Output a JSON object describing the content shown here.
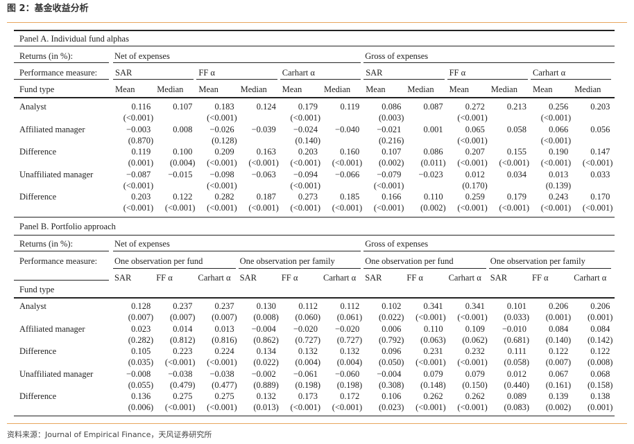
{
  "header": {
    "title": "图 2：基金收益分析"
  },
  "panel_a": {
    "title": "Panel A. Individual fund alphas",
    "returns_label": "Returns (in %):",
    "groups": [
      "Net of expenses",
      "Gross of expenses"
    ],
    "measure_label": "Performance measure:",
    "measures": [
      "SAR",
      "FF α",
      "Carhart α",
      "SAR",
      "FF α",
      "Carhart α"
    ],
    "fund_type_label": "Fund type",
    "stats": [
      "Mean",
      "Median",
      "Mean",
      "Median",
      "Mean",
      "Median",
      "Mean",
      "Median",
      "Mean",
      "Median",
      "Mean",
      "Median"
    ],
    "rows": [
      {
        "label": "Analyst",
        "values": [
          "0.116",
          "0.107",
          "0.183",
          "0.124",
          "0.179",
          "0.119",
          "0.086",
          "0.087",
          "0.272",
          "0.213",
          "0.256",
          "0.203"
        ],
        "pvalues": [
          "(<0.001)",
          null,
          "(<0.001)",
          null,
          "(<0.001)",
          null,
          "(0.003)",
          null,
          "(<0.001)",
          null,
          "(<0.001)",
          null
        ]
      },
      {
        "label": "Affiliated manager",
        "values": [
          "−0.003",
          "0.008",
          "−0.026",
          "−0.039",
          "−0.024",
          "−0.040",
          "−0.021",
          "0.001",
          "0.065",
          "0.058",
          "0.066",
          "0.056"
        ],
        "pvalues": [
          "(0.870)",
          null,
          "(0.128)",
          null,
          "(0.140)",
          null,
          "(0.216)",
          null,
          "(<0.001)",
          null,
          "(<0.001)",
          null
        ]
      },
      {
        "label": "Difference",
        "values": [
          "0.119",
          "0.100",
          "0.209",
          "0.163",
          "0.203",
          "0.160",
          "0.107",
          "0.086",
          "0.207",
          "0.155",
          "0.190",
          "0.147"
        ],
        "pvalues": [
          "(0.001)",
          "(0.004)",
          "(<0.001)",
          "(<0.001)",
          "(<0.001)",
          "(<0.001)",
          "(0.002)",
          "(0.011)",
          "(<0.001)",
          "(<0.001)",
          "(<0.001)",
          "(<0.001)"
        ]
      },
      {
        "label": "Unaffiliated manager",
        "values": [
          "−0.087",
          "−0.015",
          "−0.098",
          "−0.063",
          "−0.094",
          "−0.066",
          "−0.079",
          "−0.023",
          "0.012",
          "0.034",
          "0.013",
          "0.033"
        ],
        "pvalues": [
          "(<0.001)",
          null,
          "(<0.001)",
          null,
          "(<0.001)",
          null,
          "(<0.001)",
          null,
          "(0.170)",
          null,
          "(0.139)",
          null
        ]
      },
      {
        "label": "Difference",
        "values": [
          "0.203",
          "0.122",
          "0.282",
          "0.187",
          "0.273",
          "0.185",
          "0.166",
          "0.110",
          "0.259",
          "0.179",
          "0.243",
          "0.170"
        ],
        "pvalues": [
          "(<0.001)",
          "(<0.001)",
          "(<0.001)",
          "(<0.001)",
          "(<0.001)",
          "(<0.001)",
          "(<0.001)",
          "(0.002)",
          "(<0.001)",
          "(<0.001)",
          "(<0.001)",
          "(<0.001)"
        ]
      }
    ]
  },
  "panel_b": {
    "title": "Panel B. Portfolio approach",
    "returns_label": "Returns (in %):",
    "groups": [
      "Net of expenses",
      "Gross of expenses"
    ],
    "measure_label": "Performance measure:",
    "subgroups": [
      "One observation per fund",
      "One observation per family",
      "One observation per fund",
      "One observation per family"
    ],
    "measures": [
      "SAR",
      "FF α",
      "Carhart α",
      "SAR",
      "FF α",
      "Carhart α",
      "SAR",
      "FF α",
      "Carhart α",
      "SAR",
      "FF α",
      "Carhart α"
    ],
    "fund_type_label": "Fund type",
    "rows": [
      {
        "label": "Analyst",
        "values": [
          "0.128",
          "0.237",
          "0.237",
          "0.130",
          "0.112",
          "0.112",
          "0.102",
          "0.341",
          "0.341",
          "0.101",
          "0.206",
          "0.206"
        ],
        "pvalues": [
          "(0.007)",
          "(0.007)",
          "(0.007)",
          "(0.008)",
          "(0.060)",
          "(0.061)",
          "(0.022)",
          "(<0.001)",
          "(<0.001)",
          "(0.033)",
          "(0.001)",
          "(0.001)"
        ]
      },
      {
        "label": "Affiliated manager",
        "values": [
          "0.023",
          "0.014",
          "0.013",
          "−0.004",
          "−0.020",
          "−0.020",
          "0.006",
          "0.110",
          "0.109",
          "−0.010",
          "0.084",
          "0.084"
        ],
        "pvalues": [
          "(0.282)",
          "(0.812)",
          "(0.816)",
          "(0.862)",
          "(0.727)",
          "(0.727)",
          "(0.792)",
          "(0.063)",
          "(0.062)",
          "(0.681)",
          "(0.140)",
          "(0.142)"
        ]
      },
      {
        "label": "Difference",
        "values": [
          "0.105",
          "0.223",
          "0.224",
          "0.134",
          "0.132",
          "0.132",
          "0.096",
          "0.231",
          "0.232",
          "0.111",
          "0.122",
          "0.122"
        ],
        "pvalues": [
          "(0.035)",
          "(<0.001)",
          "(<0.001)",
          "(0.022)",
          "(0.004)",
          "(0.004)",
          "(0.050)",
          "(<0.001)",
          "(<0.001)",
          "(0.058)",
          "(0.007)",
          "(0.008)"
        ]
      },
      {
        "label": "Unaffiliated manager",
        "values": [
          "−0.008",
          "−0.038",
          "−0.038",
          "−0.002",
          "−0.061",
          "−0.060",
          "−0.004",
          "0.079",
          "0.079",
          "0.012",
          "0.067",
          "0.068"
        ],
        "pvalues": [
          "(0.055)",
          "(0.479)",
          "(0.477)",
          "(0.889)",
          "(0.198)",
          "(0.198)",
          "(0.308)",
          "(0.148)",
          "(0.150)",
          "(0.440)",
          "(0.161)",
          "(0.158)"
        ]
      },
      {
        "label": "Difference",
        "values": [
          "0.136",
          "0.275",
          "0.275",
          "0.132",
          "0.173",
          "0.172",
          "0.106",
          "0.262",
          "0.262",
          "0.089",
          "0.139",
          "0.138"
        ],
        "pvalues": [
          "(0.006)",
          "(<0.001)",
          "(<0.001)",
          "(0.013)",
          "(<0.001)",
          "(<0.001)",
          "(0.023)",
          "(<0.001)",
          "(<0.001)",
          "(0.083)",
          "(0.002)",
          "(0.001)"
        ]
      }
    ]
  },
  "footer": {
    "source": "资料来源：Journal of Empirical Finance，天风证券研究所"
  }
}
